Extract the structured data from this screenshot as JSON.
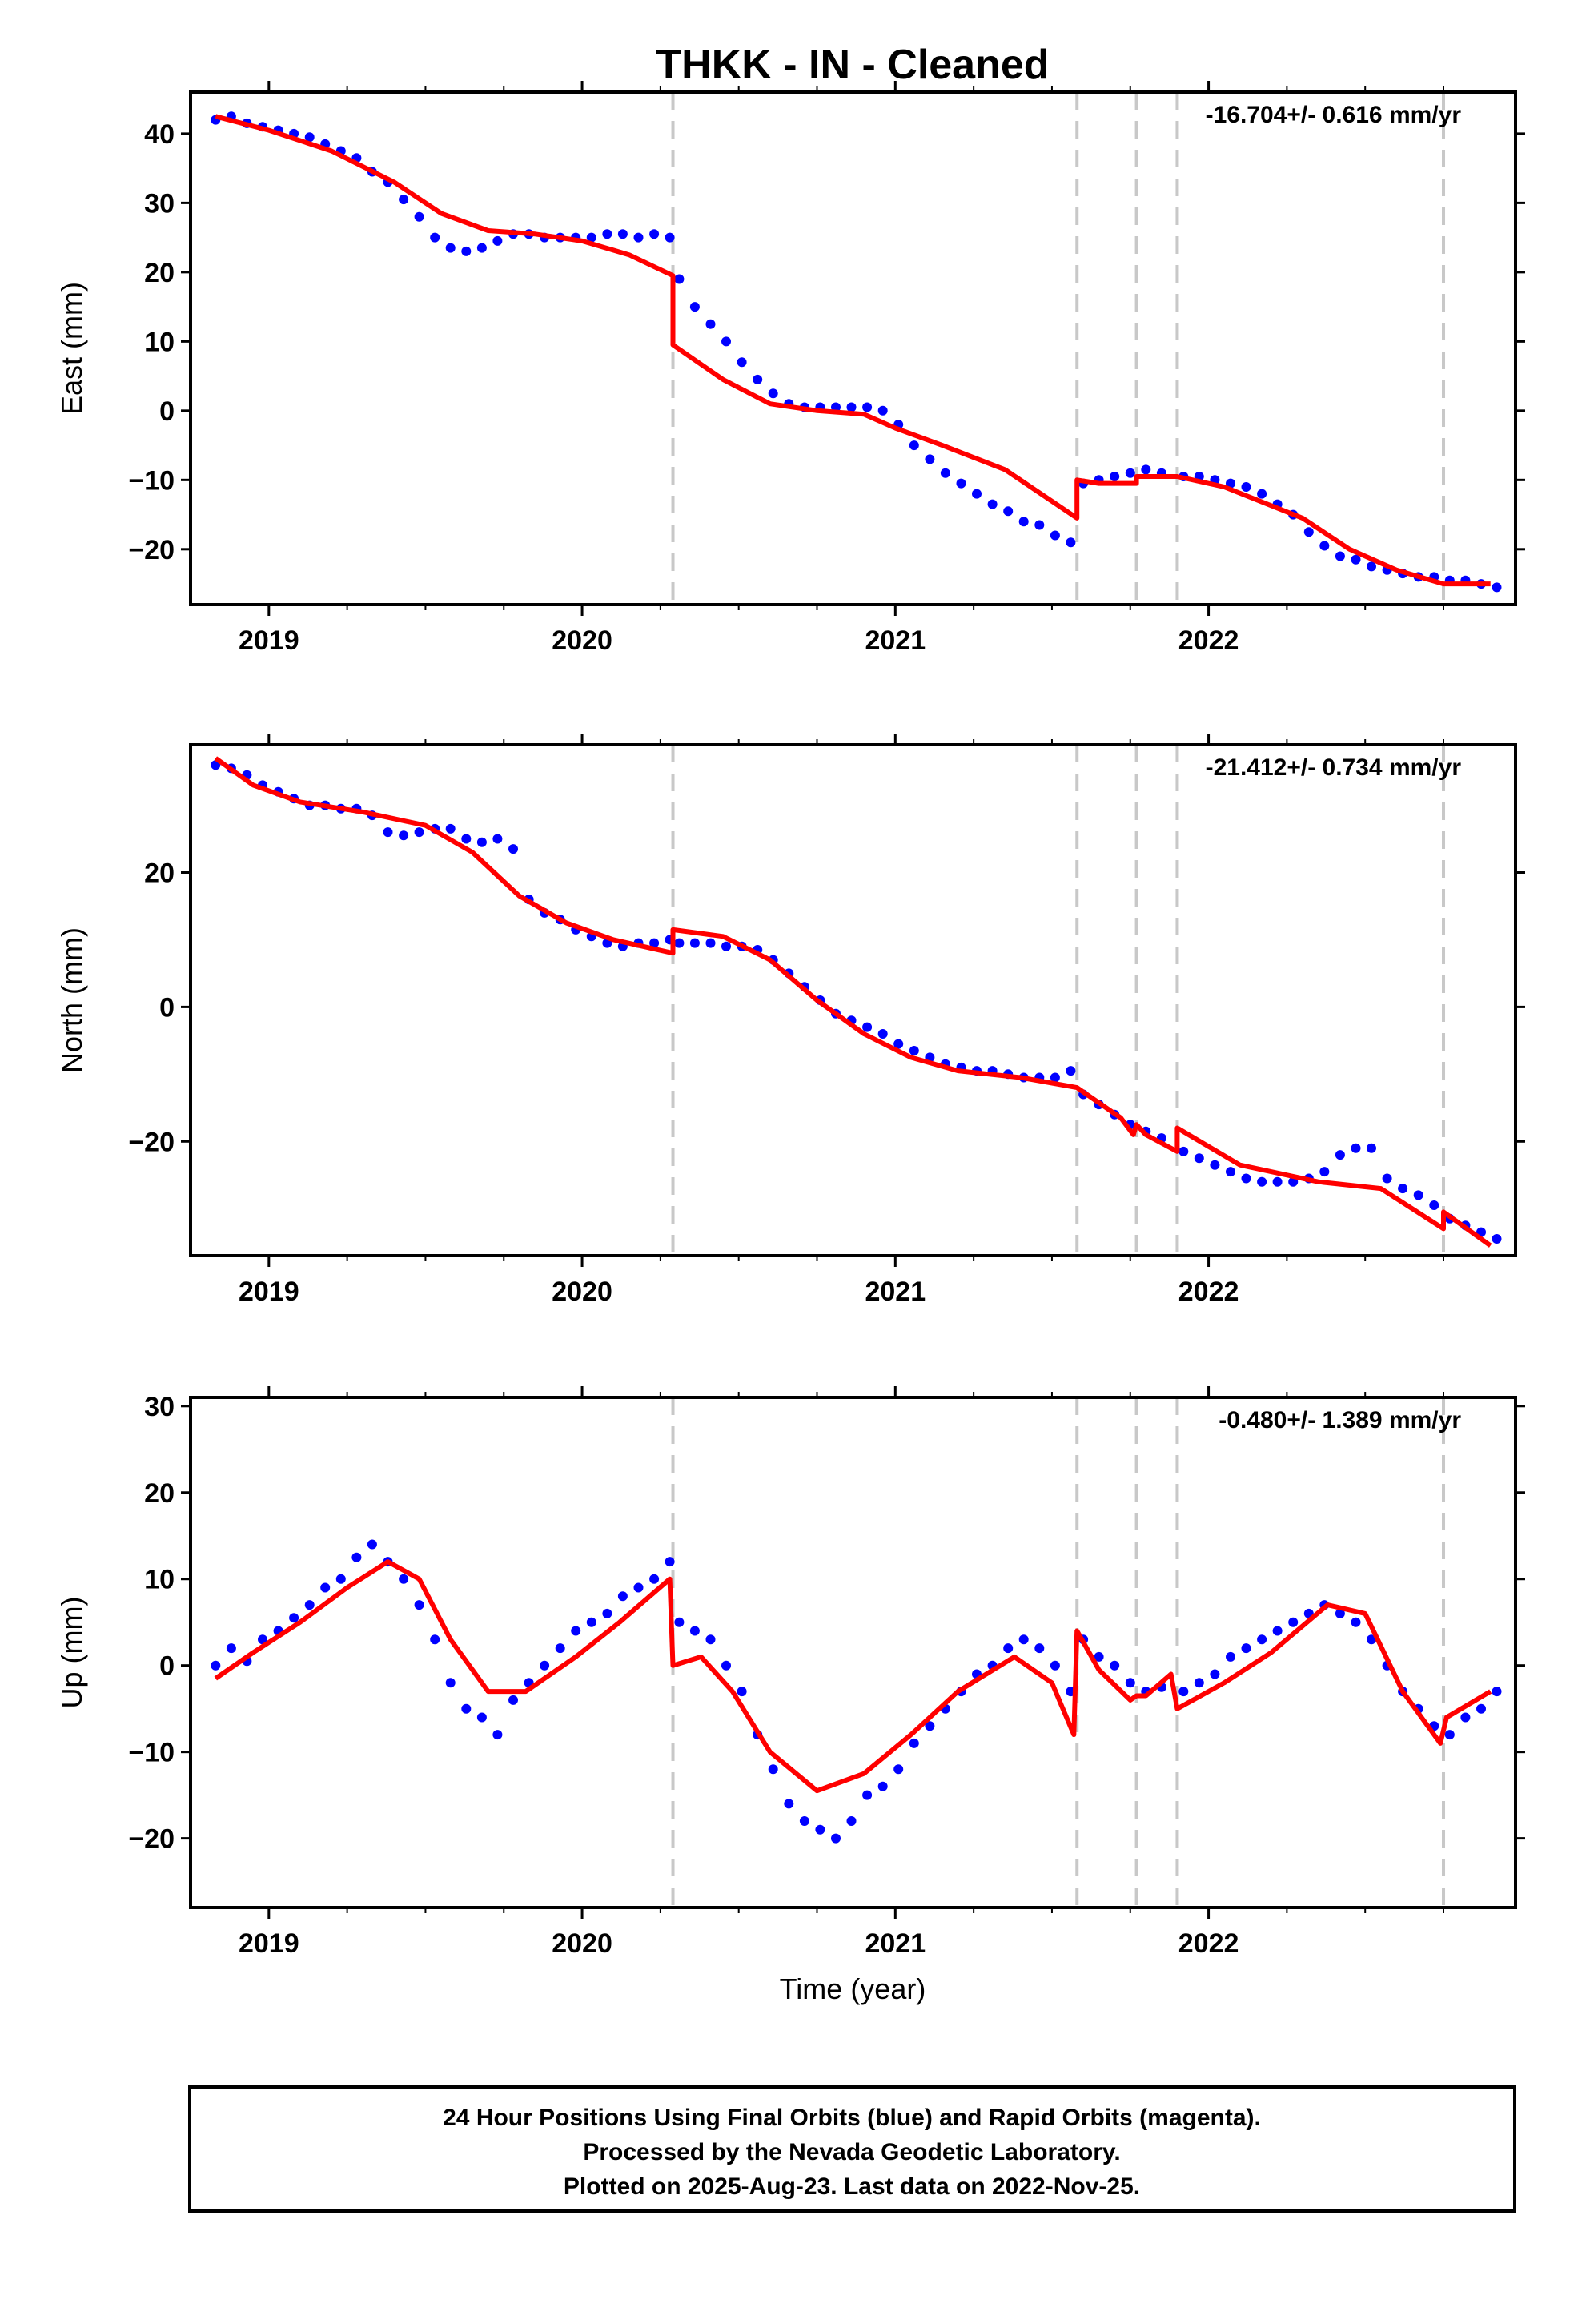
{
  "title": "THKK  - IN - Cleaned",
  "xlabel": "Time (year)",
  "footer": {
    "line1": "24 Hour Positions Using Final Orbits (blue) and Rapid Orbits (magenta).",
    "line2": "Processed by the Nevada Geodetic Laboratory.",
    "line3": "Plotted on 2025-Aug-23. Last data on 2022-Nov-25."
  },
  "colors": {
    "data": "#0000ff",
    "model": "#ff0000",
    "breaks": "#c8c8c8"
  },
  "chart_data": [
    {
      "type": "scatter",
      "ylabel": "East (mm)",
      "rate_label": "-16.704+/- 0.616 mm/yr",
      "xlim": [
        2018.75,
        2022.98
      ],
      "ylim": [
        -28,
        46
      ],
      "yticks": [
        40,
        30,
        20,
        10,
        0,
        -10,
        -20
      ],
      "xticks": [
        2019,
        2020,
        2021,
        2022
      ],
      "breaks": [
        2020.29,
        2021.58,
        2021.77,
        2021.9,
        2022.75
      ],
      "model": {
        "x": [
          2018.83,
          2019.0,
          2019.2,
          2019.4,
          2019.55,
          2019.7,
          2019.85,
          2020.0,
          2020.15,
          2020.29,
          2020.29,
          2020.45,
          2020.6,
          2020.75,
          2020.9,
          2021.0,
          2021.15,
          2021.35,
          2021.58,
          2021.58,
          2021.65,
          2021.77,
          2021.77,
          2021.9,
          2022.05,
          2022.3,
          2022.45,
          2022.6,
          2022.75,
          2022.9
        ],
        "y": [
          42.5,
          40.5,
          37.5,
          33.0,
          28.5,
          26.0,
          25.5,
          24.5,
          22.5,
          19.5,
          9.5,
          4.5,
          1.0,
          0.0,
          -0.5,
          -2.5,
          -5.0,
          -8.5,
          -15.5,
          -10.0,
          -10.5,
          -10.5,
          -9.5,
          -9.5,
          -11.0,
          -15.5,
          -20.0,
          -23.0,
          -25.0,
          -25.0
        ]
      },
      "points": {
        "x": [
          2018.83,
          2018.88,
          2018.93,
          2018.98,
          2019.03,
          2019.08,
          2019.13,
          2019.18,
          2019.23,
          2019.28,
          2019.33,
          2019.38,
          2019.43,
          2019.48,
          2019.53,
          2019.58,
          2019.63,
          2019.68,
          2019.73,
          2019.78,
          2019.83,
          2019.88,
          2019.93,
          2019.98,
          2020.03,
          2020.08,
          2020.13,
          2020.18,
          2020.23,
          2020.28,
          2020.31,
          2020.36,
          2020.41,
          2020.46,
          2020.51,
          2020.56,
          2020.61,
          2020.66,
          2020.71,
          2020.76,
          2020.81,
          2020.86,
          2020.91,
          2020.96,
          2021.01,
          2021.06,
          2021.11,
          2021.16,
          2021.21,
          2021.26,
          2021.31,
          2021.36,
          2021.41,
          2021.46,
          2021.51,
          2021.56,
          2021.6,
          2021.65,
          2021.7,
          2021.75,
          2021.8,
          2021.85,
          2021.92,
          2021.97,
          2022.02,
          2022.07,
          2022.12,
          2022.17,
          2022.22,
          2022.27,
          2022.32,
          2022.37,
          2022.42,
          2022.47,
          2022.52,
          2022.57,
          2022.62,
          2022.67,
          2022.72,
          2022.77,
          2022.82,
          2022.87,
          2022.92
        ],
        "y": [
          42.0,
          42.5,
          41.5,
          41.0,
          40.5,
          40.0,
          39.5,
          38.5,
          37.5,
          36.5,
          34.5,
          33.0,
          30.5,
          28.0,
          25.0,
          23.5,
          23.0,
          23.5,
          24.5,
          25.5,
          25.5,
          25.0,
          25.0,
          25.0,
          25.0,
          25.5,
          25.5,
          25.0,
          25.5,
          25.0,
          19.0,
          15.0,
          12.5,
          10.0,
          7.0,
          4.5,
          2.5,
          1.0,
          0.5,
          0.5,
          0.5,
          0.5,
          0.5,
          0.0,
          -2.0,
          -5.0,
          -7.0,
          -9.0,
          -10.5,
          -12.0,
          -13.5,
          -14.5,
          -16.0,
          -16.5,
          -18.0,
          -19.0,
          -10.5,
          -10.0,
          -9.5,
          -9.0,
          -8.5,
          -9.0,
          -9.5,
          -9.5,
          -10.0,
          -10.5,
          -11.0,
          -12.0,
          -13.5,
          -15.0,
          -17.5,
          -19.5,
          -21.0,
          -21.5,
          -22.5,
          -23.0,
          -23.5,
          -24.0,
          -24.0,
          -24.5,
          -24.5,
          -25.0,
          -25.5
        ]
      }
    },
    {
      "type": "scatter",
      "ylabel": "North (mm)",
      "rate_label": "-21.412+/- 0.734 mm/yr",
      "xlim": [
        2018.75,
        2022.98
      ],
      "ylim": [
        -37,
        39
      ],
      "yticks": [
        20,
        0,
        -20
      ],
      "xticks": [
        2019,
        2020,
        2021,
        2022
      ],
      "breaks": [
        2020.29,
        2021.58,
        2021.77,
        2021.9,
        2022.75
      ],
      "model": {
        "x": [
          2018.83,
          2018.95,
          2019.1,
          2019.3,
          2019.5,
          2019.65,
          2019.8,
          2019.95,
          2020.1,
          2020.29,
          2020.29,
          2020.45,
          2020.6,
          2020.75,
          2020.9,
          2021.05,
          2021.2,
          2021.4,
          2021.58,
          2021.72,
          2021.76,
          2021.77,
          2021.8,
          2021.9,
          2021.9,
          2022.1,
          2022.35,
          2022.55,
          2022.75,
          2022.75,
          2022.9
        ],
        "y": [
          37.0,
          33.0,
          30.5,
          29.0,
          27.0,
          23.0,
          16.5,
          12.5,
          10.0,
          8.0,
          11.5,
          10.5,
          7.0,
          1.0,
          -4.0,
          -7.5,
          -9.5,
          -10.5,
          -12.0,
          -16.5,
          -19.0,
          -17.5,
          -19.0,
          -21.5,
          -18.0,
          -23.5,
          -26.0,
          -27.0,
          -33.0,
          -30.5,
          -35.5
        ]
      },
      "points": {
        "x": [
          2018.83,
          2018.88,
          2018.93,
          2018.98,
          2019.03,
          2019.08,
          2019.13,
          2019.18,
          2019.23,
          2019.28,
          2019.33,
          2019.38,
          2019.43,
          2019.48,
          2019.53,
          2019.58,
          2019.63,
          2019.68,
          2019.73,
          2019.78,
          2019.83,
          2019.88,
          2019.93,
          2019.98,
          2020.03,
          2020.08,
          2020.13,
          2020.18,
          2020.23,
          2020.28,
          2020.31,
          2020.36,
          2020.41,
          2020.46,
          2020.51,
          2020.56,
          2020.61,
          2020.66,
          2020.71,
          2020.76,
          2020.81,
          2020.86,
          2020.91,
          2020.96,
          2021.01,
          2021.06,
          2021.11,
          2021.16,
          2021.21,
          2021.26,
          2021.31,
          2021.36,
          2021.41,
          2021.46,
          2021.51,
          2021.56,
          2021.6,
          2021.65,
          2021.7,
          2021.75,
          2021.8,
          2021.85,
          2021.92,
          2021.97,
          2022.02,
          2022.07,
          2022.12,
          2022.17,
          2022.22,
          2022.27,
          2022.32,
          2022.37,
          2022.42,
          2022.47,
          2022.52,
          2022.57,
          2022.62,
          2022.67,
          2022.72,
          2022.77,
          2022.82,
          2022.87,
          2022.92
        ],
        "y": [
          36.0,
          35.5,
          34.5,
          33.0,
          32.0,
          31.0,
          30.0,
          30.0,
          29.5,
          29.5,
          28.5,
          26.0,
          25.5,
          26.0,
          26.5,
          26.5,
          25.0,
          24.5,
          25.0,
          23.5,
          16.0,
          14.0,
          13.0,
          11.5,
          10.5,
          9.5,
          9.0,
          9.5,
          9.5,
          10.0,
          9.5,
          9.5,
          9.5,
          9.0,
          9.0,
          8.5,
          7.0,
          5.0,
          3.0,
          1.0,
          -1.0,
          -2.0,
          -3.0,
          -4.0,
          -5.5,
          -6.5,
          -7.5,
          -8.5,
          -9.0,
          -9.5,
          -9.5,
          -10.0,
          -10.5,
          -10.5,
          -10.5,
          -9.5,
          -13.0,
          -14.5,
          -16.0,
          -17.5,
          -18.5,
          -19.5,
          -21.5,
          -22.5,
          -23.5,
          -24.5,
          -25.5,
          -26.0,
          -26.0,
          -26.0,
          -25.5,
          -24.5,
          -22.0,
          -21.0,
          -21.0,
          -25.5,
          -27.0,
          -28.0,
          -29.5,
          -31.5,
          -32.5,
          -33.5,
          -34.5
        ]
      }
    },
    {
      "type": "scatter",
      "ylabel": "Up (mm)",
      "rate_label": "-0.480+/- 1.389 mm/yr",
      "xlim": [
        2018.75,
        2022.98
      ],
      "ylim": [
        -28,
        31
      ],
      "yticks": [
        30,
        20,
        10,
        0,
        -10,
        -20
      ],
      "xticks": [
        2019,
        2020,
        2021,
        2022
      ],
      "breaks": [
        2020.29,
        2021.58,
        2021.77,
        2021.9,
        2022.75
      ],
      "model": {
        "x": [
          2018.83,
          2018.95,
          2019.1,
          2019.25,
          2019.38,
          2019.48,
          2019.58,
          2019.7,
          2019.82,
          2019.98,
          2020.12,
          2020.28,
          2020.29,
          2020.38,
          2020.48,
          2020.6,
          2020.75,
          2020.9,
          2021.05,
          2021.2,
          2021.38,
          2021.5,
          2021.57,
          2021.58,
          2021.65,
          2021.75,
          2021.77,
          2021.8,
          2021.88,
          2021.9,
          2022.05,
          2022.2,
          2022.38,
          2022.5,
          2022.62,
          2022.74,
          2022.76,
          2022.9
        ],
        "y": [
          -1.5,
          1.5,
          5.0,
          9.0,
          12.0,
          10.0,
          3.0,
          -3.0,
          -3.0,
          1.0,
          5.0,
          10.0,
          0.0,
          1.0,
          -3.0,
          -10.0,
          -14.5,
          -12.5,
          -8.0,
          -3.0,
          1.0,
          -2.0,
          -8.0,
          4.0,
          -0.5,
          -4.0,
          -3.5,
          -3.5,
          -1.0,
          -5.0,
          -2.0,
          1.5,
          7.0,
          6.0,
          -3.0,
          -9.0,
          -6.0,
          -3.0
        ]
      },
      "points": {
        "x": [
          2018.83,
          2018.88,
          2018.93,
          2018.98,
          2019.03,
          2019.08,
          2019.13,
          2019.18,
          2019.23,
          2019.28,
          2019.33,
          2019.38,
          2019.43,
          2019.48,
          2019.53,
          2019.58,
          2019.63,
          2019.68,
          2019.73,
          2019.78,
          2019.83,
          2019.88,
          2019.93,
          2019.98,
          2020.03,
          2020.08,
          2020.13,
          2020.18,
          2020.23,
          2020.28,
          2020.31,
          2020.36,
          2020.41,
          2020.46,
          2020.51,
          2020.56,
          2020.61,
          2020.66,
          2020.71,
          2020.76,
          2020.81,
          2020.86,
          2020.91,
          2020.96,
          2021.01,
          2021.06,
          2021.11,
          2021.16,
          2021.21,
          2021.26,
          2021.31,
          2021.36,
          2021.41,
          2021.46,
          2021.51,
          2021.56,
          2021.6,
          2021.65,
          2021.7,
          2021.75,
          2021.8,
          2021.85,
          2021.92,
          2021.97,
          2022.02,
          2022.07,
          2022.12,
          2022.17,
          2022.22,
          2022.27,
          2022.32,
          2022.37,
          2022.42,
          2022.47,
          2022.52,
          2022.57,
          2022.62,
          2022.67,
          2022.72,
          2022.77,
          2022.82,
          2022.87,
          2022.92
        ],
        "y": [
          0.0,
          2.0,
          0.5,
          3.0,
          4.0,
          5.5,
          7.0,
          9.0,
          10.0,
          12.5,
          14.0,
          12.0,
          10.0,
          7.0,
          3.0,
          -2.0,
          -5.0,
          -6.0,
          -8.0,
          -4.0,
          -2.0,
          0.0,
          2.0,
          4.0,
          5.0,
          6.0,
          8.0,
          9.0,
          10.0,
          12.0,
          5.0,
          4.0,
          3.0,
          0.0,
          -3.0,
          -8.0,
          -12.0,
          -16.0,
          -18.0,
          -19.0,
          -20.0,
          -18.0,
          -15.0,
          -14.0,
          -12.0,
          -9.0,
          -7.0,
          -5.0,
          -3.0,
          -1.0,
          0.0,
          2.0,
          3.0,
          2.0,
          0.0,
          -3.0,
          3.0,
          1.0,
          0.0,
          -2.0,
          -3.0,
          -2.5,
          -3.0,
          -2.0,
          -1.0,
          1.0,
          2.0,
          3.0,
          4.0,
          5.0,
          6.0,
          7.0,
          6.0,
          5.0,
          3.0,
          0.0,
          -3.0,
          -5.0,
          -7.0,
          -8.0,
          -6.0,
          -5.0,
          -3.0
        ]
      }
    }
  ]
}
